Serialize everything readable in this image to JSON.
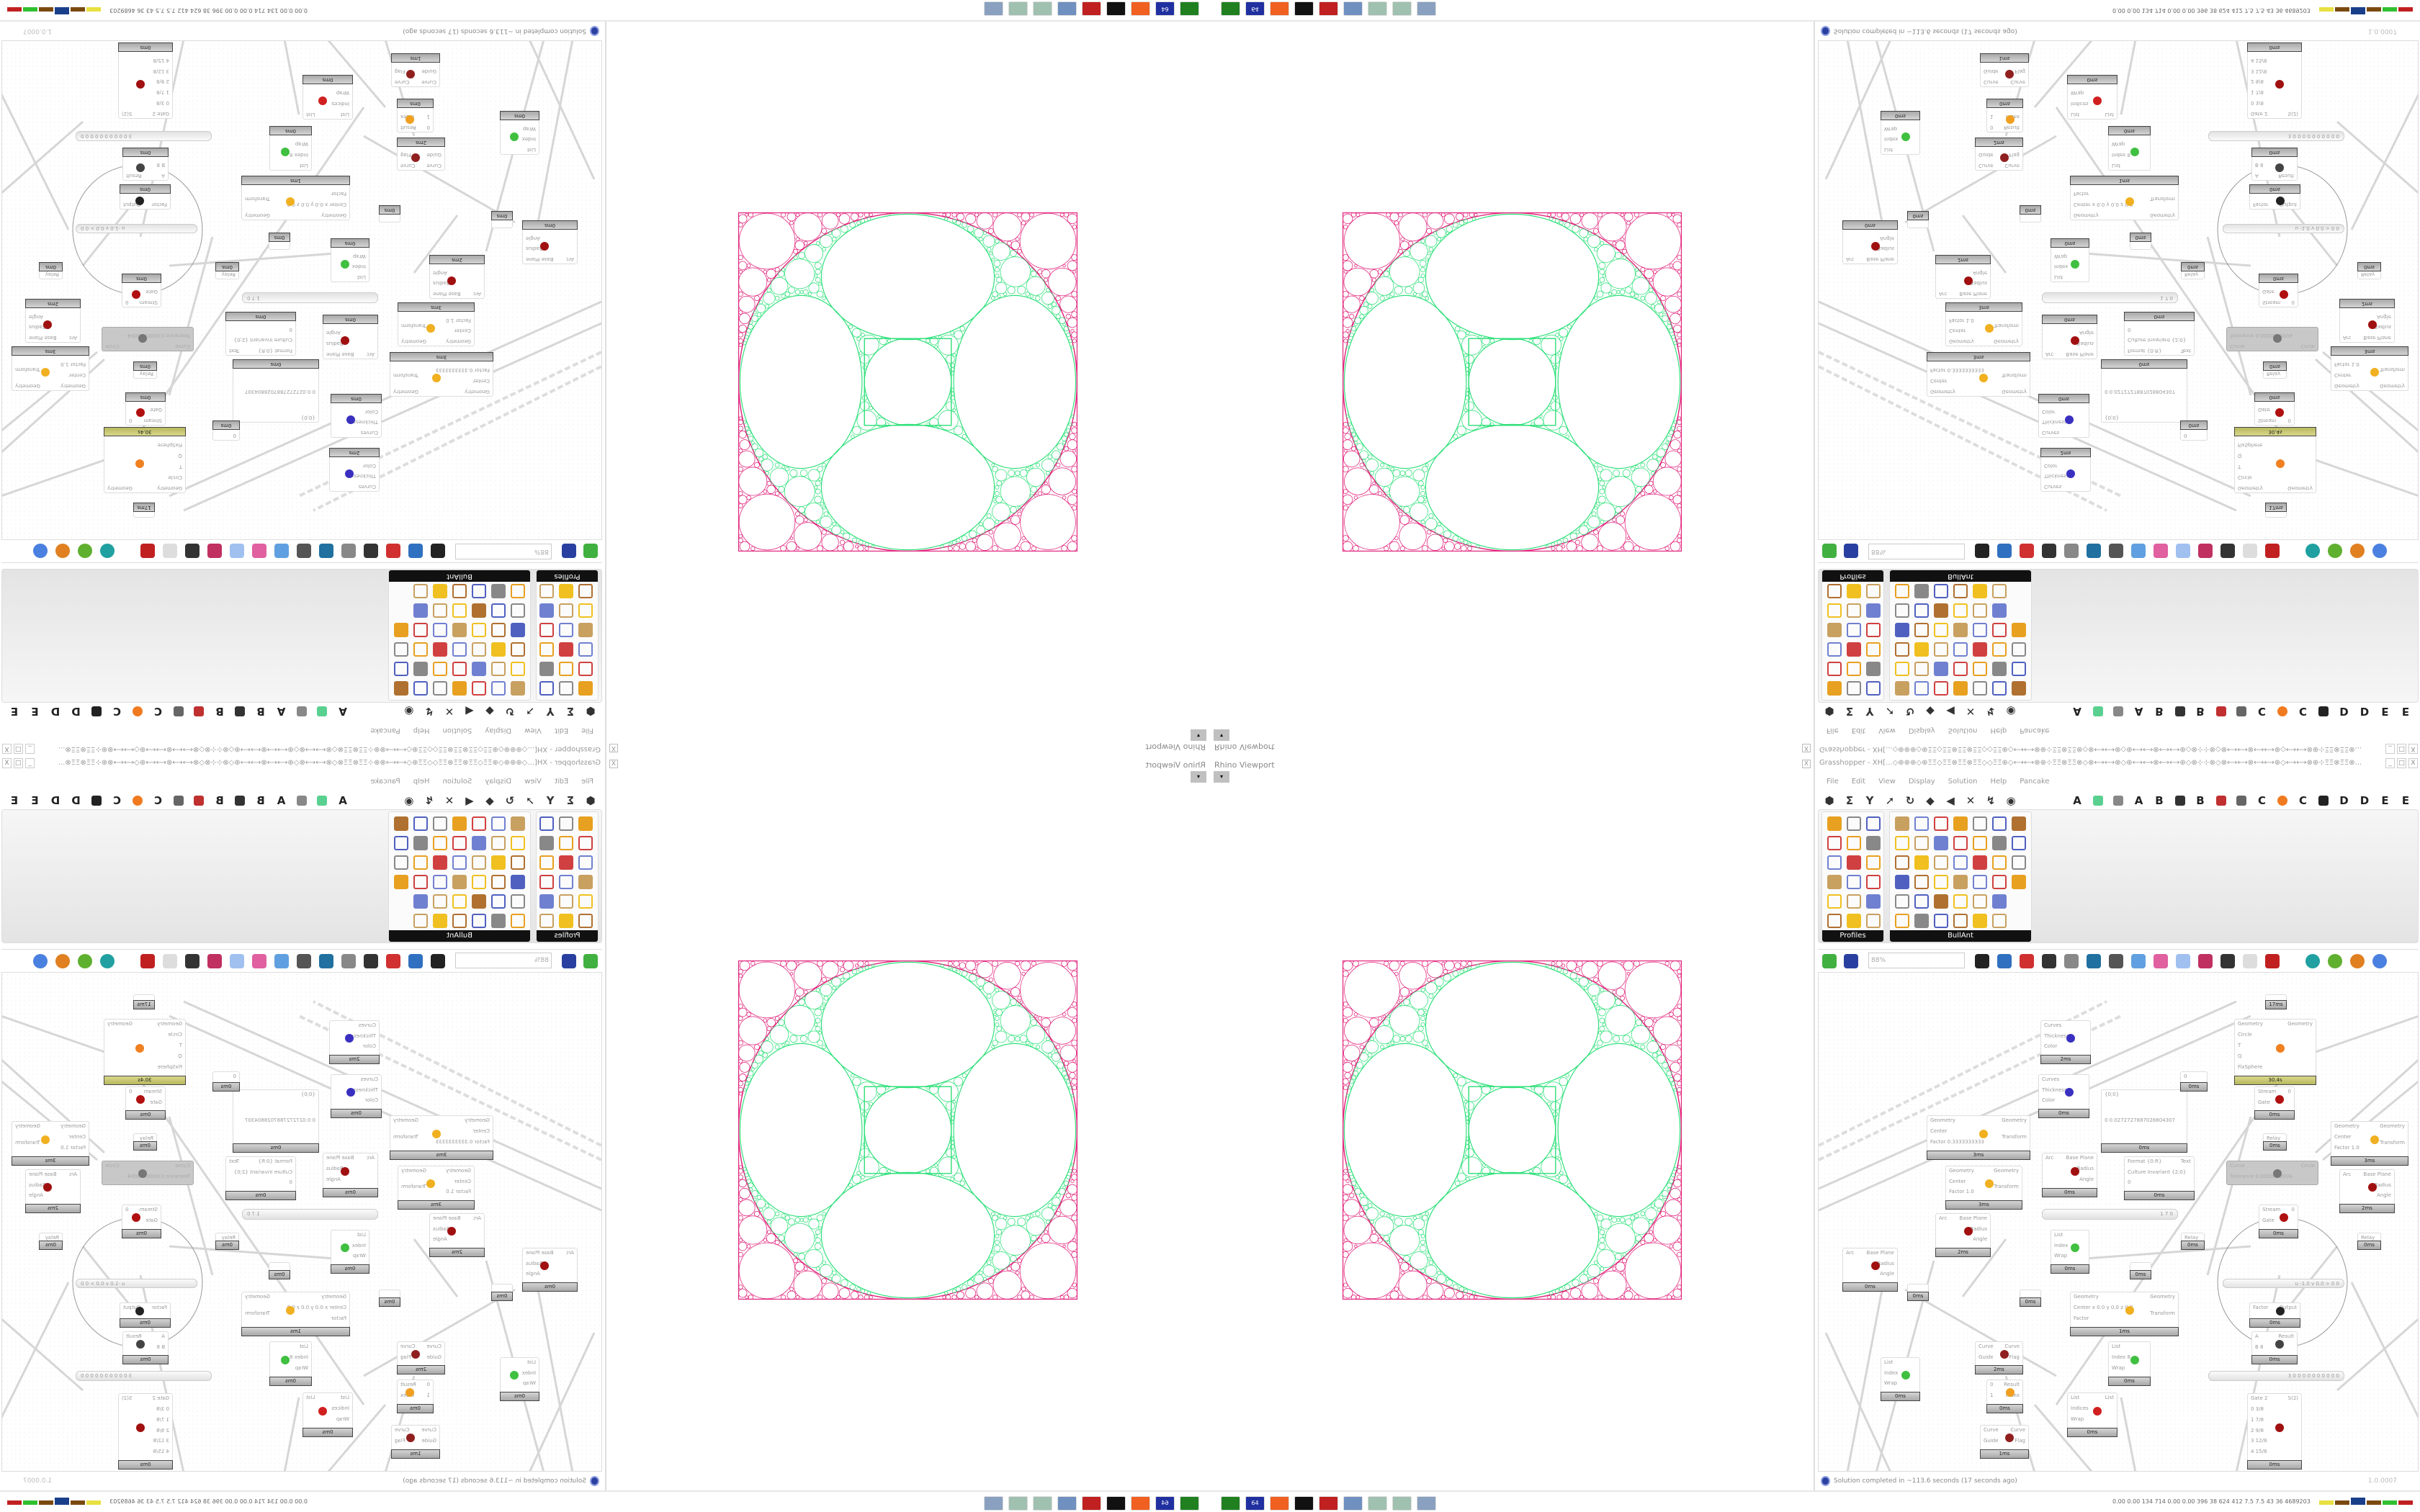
{
  "viewport": {
    "title": "Rhino Viewport",
    "close": "X",
    "dropdown": "▾"
  },
  "grasshopper": {
    "title": "Grasshopper - XH[...◇⊕⊕⊕◇⊕ΞΞ◇ΞΞ⊗ΞΞ⊗ΞΞ◇◇ΞΞ⊕◇⟷⟷⊗⊕⊹ΞΞ⊗ΞΞ⊗◇⊗⟷⟷⊗◇⊕⟷⟷⊗⟷⟷⊕◇⊗⊹⊹⊗◇⊗⟷⟷⊗⟷⟷⊕◇⟷⟷⊗⊕⊹ΞΞ⊗ΞΞ⊗...",
    "window_buttons": [
      "_",
      "□",
      "X"
    ],
    "menu": [
      "File",
      "Edit",
      "View",
      "Display",
      "Solution",
      "Help",
      "Pancake"
    ],
    "toolbar_left_icons": [
      "hexagon-icon",
      "sigma-icon",
      "vector-icon",
      "arrow-icon",
      "loop-icon",
      "surface-icon",
      "mesh-icon",
      "intersect-icon",
      "transform-icon",
      "eye-icon"
    ],
    "toolbar_tabs": [
      "A",
      "",
      "",
      "A",
      "B",
      "",
      "B",
      "",
      "",
      "C",
      "",
      "C",
      "",
      "D",
      "D",
      "E",
      "E",
      ""
    ],
    "panels": [
      {
        "label": "Profiles"
      },
      {
        "label": "BullAnt"
      }
    ],
    "zoom": "88%",
    "status": "Solution completed in ~113.6 seconds (17 seconds ago)",
    "version": "1.0.0007",
    "accent": "#2a3fa0"
  },
  "canvas": {
    "components": [
      {
        "id": "custom-preview-1",
        "inputs": [
          "Curves",
          "Thickness",
          "Color"
        ],
        "outputs": [],
        "time": "2ms",
        "icon": "custom-preview-icon"
      },
      {
        "id": "custom-preview-2",
        "inputs": [
          "Curves",
          "Thickness",
          "Color"
        ],
        "outputs": [],
        "time": "0ms",
        "icon": "custom-preview-icon"
      },
      {
        "id": "scale-1",
        "inputs": [
          "Geometry",
          "Center",
          "Factor 0.3333333333"
        ],
        "outputs": [
          "Geometry",
          "Transform"
        ],
        "time": "3ms",
        "icon": "scale-icon"
      },
      {
        "id": "scale-2",
        "inputs": [
          "Geometry",
          "Center",
          "Factor 1.0"
        ],
        "outputs": [
          "Geometry",
          "Transform"
        ],
        "time": "3ms",
        "icon": "scale-icon"
      },
      {
        "id": "arc-1",
        "inputs": [
          "Arc"
        ],
        "outputs": [
          "Base Plane",
          "Radius",
          "Angle"
        ],
        "time": "2ms",
        "icon": "deconstruct-arc-icon"
      },
      {
        "id": "arc-2",
        "inputs": [
          "Arc"
        ],
        "outputs": [
          "Base Plane",
          "Radius",
          "Angle"
        ],
        "time": "0ms",
        "icon": "deconstruct-arc-icon"
      },
      {
        "id": "panel",
        "inputs": [
          "{0;0}",
          "0  0.0272727887028804307"
        ],
        "outputs": [],
        "time": "0ms",
        "icon": ""
      },
      {
        "id": "format",
        "inputs": [
          "Format {0:R}",
          "Culture Invariant {2;0}",
          "0"
        ],
        "outputs": [
          "Text"
        ],
        "time": "0ms",
        "icon": ""
      },
      {
        "id": "number",
        "inputs": [
          "0"
        ],
        "outputs": [],
        "time": "0ms",
        "icon": ""
      },
      {
        "id": "kaleidoscope",
        "inputs": [
          "Geometry",
          "Circle",
          "T",
          "Q",
          "FixSphere"
        ],
        "outputs": [
          "Geometry"
        ],
        "time": "30.4s",
        "icon": "kaleido-icon"
      },
      {
        "id": "stream-gate-1",
        "inputs": [
          "Stream",
          "Gate"
        ],
        "outputs": [
          "0"
        ],
        "time": "0ms",
        "icon": "stream-gate-icon"
      },
      {
        "id": "relay-1",
        "inputs": [
          "Relay"
        ],
        "outputs": [],
        "time": "0ms",
        "icon": ""
      },
      {
        "id": "curve-to-circle",
        "inputs": [
          "Curve",
          "Tolerance 0.0000000004"
        ],
        "outputs": [
          "Circle"
        ],
        "time": "",
        "icon": "circle-icon"
      },
      {
        "id": "scale-3",
        "inputs": [
          "Geometry",
          "Center",
          "Factor 1.0"
        ],
        "outputs": [
          "Geometry",
          "Transform"
        ],
        "time": "3ms",
        "icon": "scale-icon"
      },
      {
        "id": "arc-3",
        "inputs": [
          "Arc"
        ],
        "outputs": [
          "Base Plane",
          "Radius",
          "Angle"
        ],
        "time": "2ms",
        "icon": "deconstruct-arc-icon"
      },
      {
        "id": "stream-gate-2",
        "inputs": [
          "Stream",
          "Gate"
        ],
        "outputs": [
          "0"
        ],
        "time": "0ms",
        "icon": "stream-gate-icon"
      },
      {
        "id": "relay-2",
        "inputs": [
          "Relay"
        ],
        "outputs": [],
        "time": "0ms",
        "icon": ""
      },
      {
        "id": "relay-3",
        "inputs": [
          "Relay"
        ],
        "outputs": [],
        "time": "0ms",
        "icon": ""
      },
      {
        "id": "list-item-1",
        "inputs": [
          "List",
          "Index",
          "Wrap"
        ],
        "outputs": [],
        "time": "0ms",
        "icon": "list-item-icon"
      },
      {
        "id": "arc-4",
        "inputs": [
          "Arc"
        ],
        "outputs": [
          "Base Plane",
          "Radius",
          "Angle"
        ],
        "time": "0ms",
        "icon": "deconstruct-arc-icon"
      },
      {
        "id": "relay-top",
        "inputs": [],
        "outputs": [],
        "time": "17ms",
        "icon": ""
      },
      {
        "id": "relay-4",
        "inputs": [],
        "outputs": [],
        "time": "0ms",
        "icon": ""
      },
      {
        "id": "scale-4",
        "inputs": [
          "Geometry",
          "Center x 0.0 y 0.0 z 0.0",
          "Factor"
        ],
        "outputs": [
          "Geometry",
          "Transform"
        ],
        "time": "1ms",
        "icon": "scale-icon"
      },
      {
        "id": "pi",
        "inputs": [
          "Factor"
        ],
        "outputs": [
          "Output"
        ],
        "time": "0ms",
        "icon": "pi-icon"
      },
      {
        "id": "division",
        "inputs": [
          "A",
          "B 8"
        ],
        "outputs": [
          "Result"
        ],
        "time": "0ms",
        "icon": "division-icon"
      },
      {
        "id": "flip-curve-1",
        "inputs": [
          "Curve",
          "Guide"
        ],
        "outputs": [
          "Curve",
          "Flag"
        ],
        "time": "2ms",
        "icon": "flip-curve-icon"
      },
      {
        "id": "list-item-2",
        "inputs": [
          "List",
          "Index 8",
          "Wrap"
        ],
        "outputs": [],
        "time": "0ms",
        "icon": "list-item-icon"
      },
      {
        "id": "list-item-3",
        "inputs": [
          "List",
          "Index",
          "Wrap"
        ],
        "outputs": [],
        "time": "0ms",
        "icon": "list-item-icon"
      },
      {
        "id": "smaller-than",
        "inputs": [
          "0",
          "1"
        ],
        "outputs": [
          "Result",
          "Index"
        ],
        "time": "0ms",
        "icon": "gate-icon"
      },
      {
        "id": "cull-index",
        "inputs": [
          "List",
          "Indices",
          "Wrap"
        ],
        "outputs": [
          "List"
        ],
        "time": "0ms",
        "icon": "cull-icon"
      },
      {
        "id": "flip-curve-2",
        "inputs": [
          "Curve",
          "Guide"
        ],
        "outputs": [
          "Curve",
          "Flag"
        ],
        "time": "1ms",
        "icon": "flip-curve-icon"
      },
      {
        "id": "stream-filter",
        "inputs": [
          "Gate 2",
          "0 3/8",
          "1 7/8",
          "2 9/8",
          "3 12/8",
          "4 15/8"
        ],
        "outputs": [
          "S(2)"
        ],
        "time": "0ms",
        "icon": "stream-filter-icon"
      },
      {
        "id": "relay-5",
        "inputs": [],
        "outputs": [],
        "time": "0ms",
        "icon": ""
      },
      {
        "id": "relay-6",
        "inputs": [],
        "outputs": [],
        "time": "0ms",
        "icon": ""
      }
    ],
    "sliders": [
      {
        "id": "slider-1",
        "value": "1 7 0"
      },
      {
        "id": "slider-2",
        "value": "3 0 0 0 0 0 0 0 0 0 0"
      },
      {
        "id": "xyz-slider",
        "value": "u -1.0  v 0.0  > 0   0"
      }
    ]
  },
  "taskbar": {
    "apps": [
      "notepad-icon",
      "notepad-icon",
      "notepad-icon",
      "calculator-icon",
      "rhino-red-icon",
      "wolf-icon",
      "firefox-icon",
      "floppy-icon",
      "terminal-icon"
    ],
    "floppy_label": "64",
    "stats": "0.00 0.00 134 714 0.00 0.00 396 38 624 412 7.5 7.5 43 36 4689203",
    "stat_colors": [
      "#e8e040",
      "#7a4a10",
      "#1a3f8a",
      "#7a4a10",
      "#30c030",
      "#c02020"
    ]
  },
  "fractal": {
    "inner_color": "#2fe07a",
    "outer_color": "#e0207a"
  }
}
